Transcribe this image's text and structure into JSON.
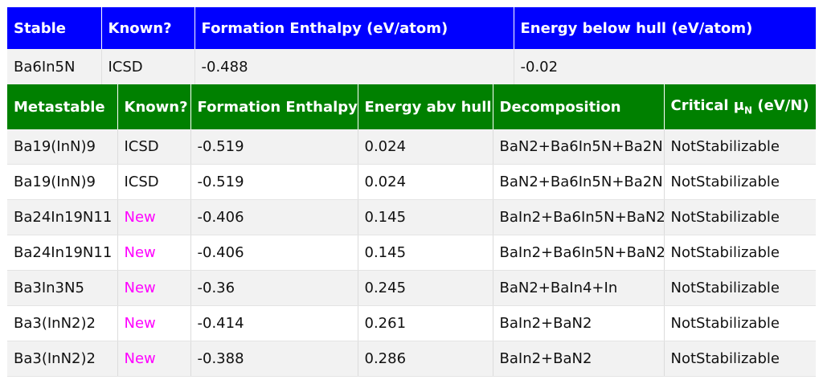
{
  "stable": {
    "headers": [
      "Stable",
      "Known?",
      "Formation Enthalpy (eV/atom)",
      "Energy below hull (eV/atom)"
    ],
    "row": [
      "Ba6In5N",
      "ICSD",
      "-0.488",
      "-0.02"
    ]
  },
  "metastable": {
    "headers": {
      "name": "Metastable",
      "known": "Known?",
      "formation": "Formation Enthalpy",
      "hull": "Energy abv hull",
      "decomposition": "Decomposition",
      "critical_prefix": "Critical μ",
      "critical_sub": "N",
      "critical_suffix": " (eV/N)"
    },
    "rows": [
      {
        "name": "Ba19(InN)9",
        "known": "ICSD",
        "formation": "-0.519",
        "hull": "0.024",
        "decomposition": "BaN2+Ba6In5N+Ba2N",
        "critical": "NotStabilizable"
      },
      {
        "name": "Ba19(InN)9",
        "known": "ICSD",
        "formation": "-0.519",
        "hull": "0.024",
        "decomposition": "BaN2+Ba6In5N+Ba2N",
        "critical": "NotStabilizable"
      },
      {
        "name": "Ba24In19N11",
        "known": "New",
        "formation": "-0.406",
        "hull": "0.145",
        "decomposition": "BaIn2+Ba6In5N+BaN2",
        "critical": "NotStabilizable"
      },
      {
        "name": "Ba24In19N11",
        "known": "New",
        "formation": "-0.406",
        "hull": "0.145",
        "decomposition": "BaIn2+Ba6In5N+BaN2",
        "critical": "NotStabilizable"
      },
      {
        "name": "Ba3In3N5",
        "known": "New",
        "formation": "-0.36",
        "hull": "0.245",
        "decomposition": "BaN2+BaIn4+In",
        "critical": "NotStabilizable"
      },
      {
        "name": "Ba3(InN2)2",
        "known": "New",
        "formation": "-0.414",
        "hull": "0.261",
        "decomposition": "BaIn2+BaN2",
        "critical": "NotStabilizable"
      },
      {
        "name": "Ba3(InN2)2",
        "known": "New",
        "formation": "-0.388",
        "hull": "0.286",
        "decomposition": "BaIn2+BaN2",
        "critical": "NotStabilizable"
      }
    ]
  },
  "colors": {
    "stable_header": "#0000ff",
    "metastable_header": "#008000",
    "new_text": "#ff00ff"
  }
}
